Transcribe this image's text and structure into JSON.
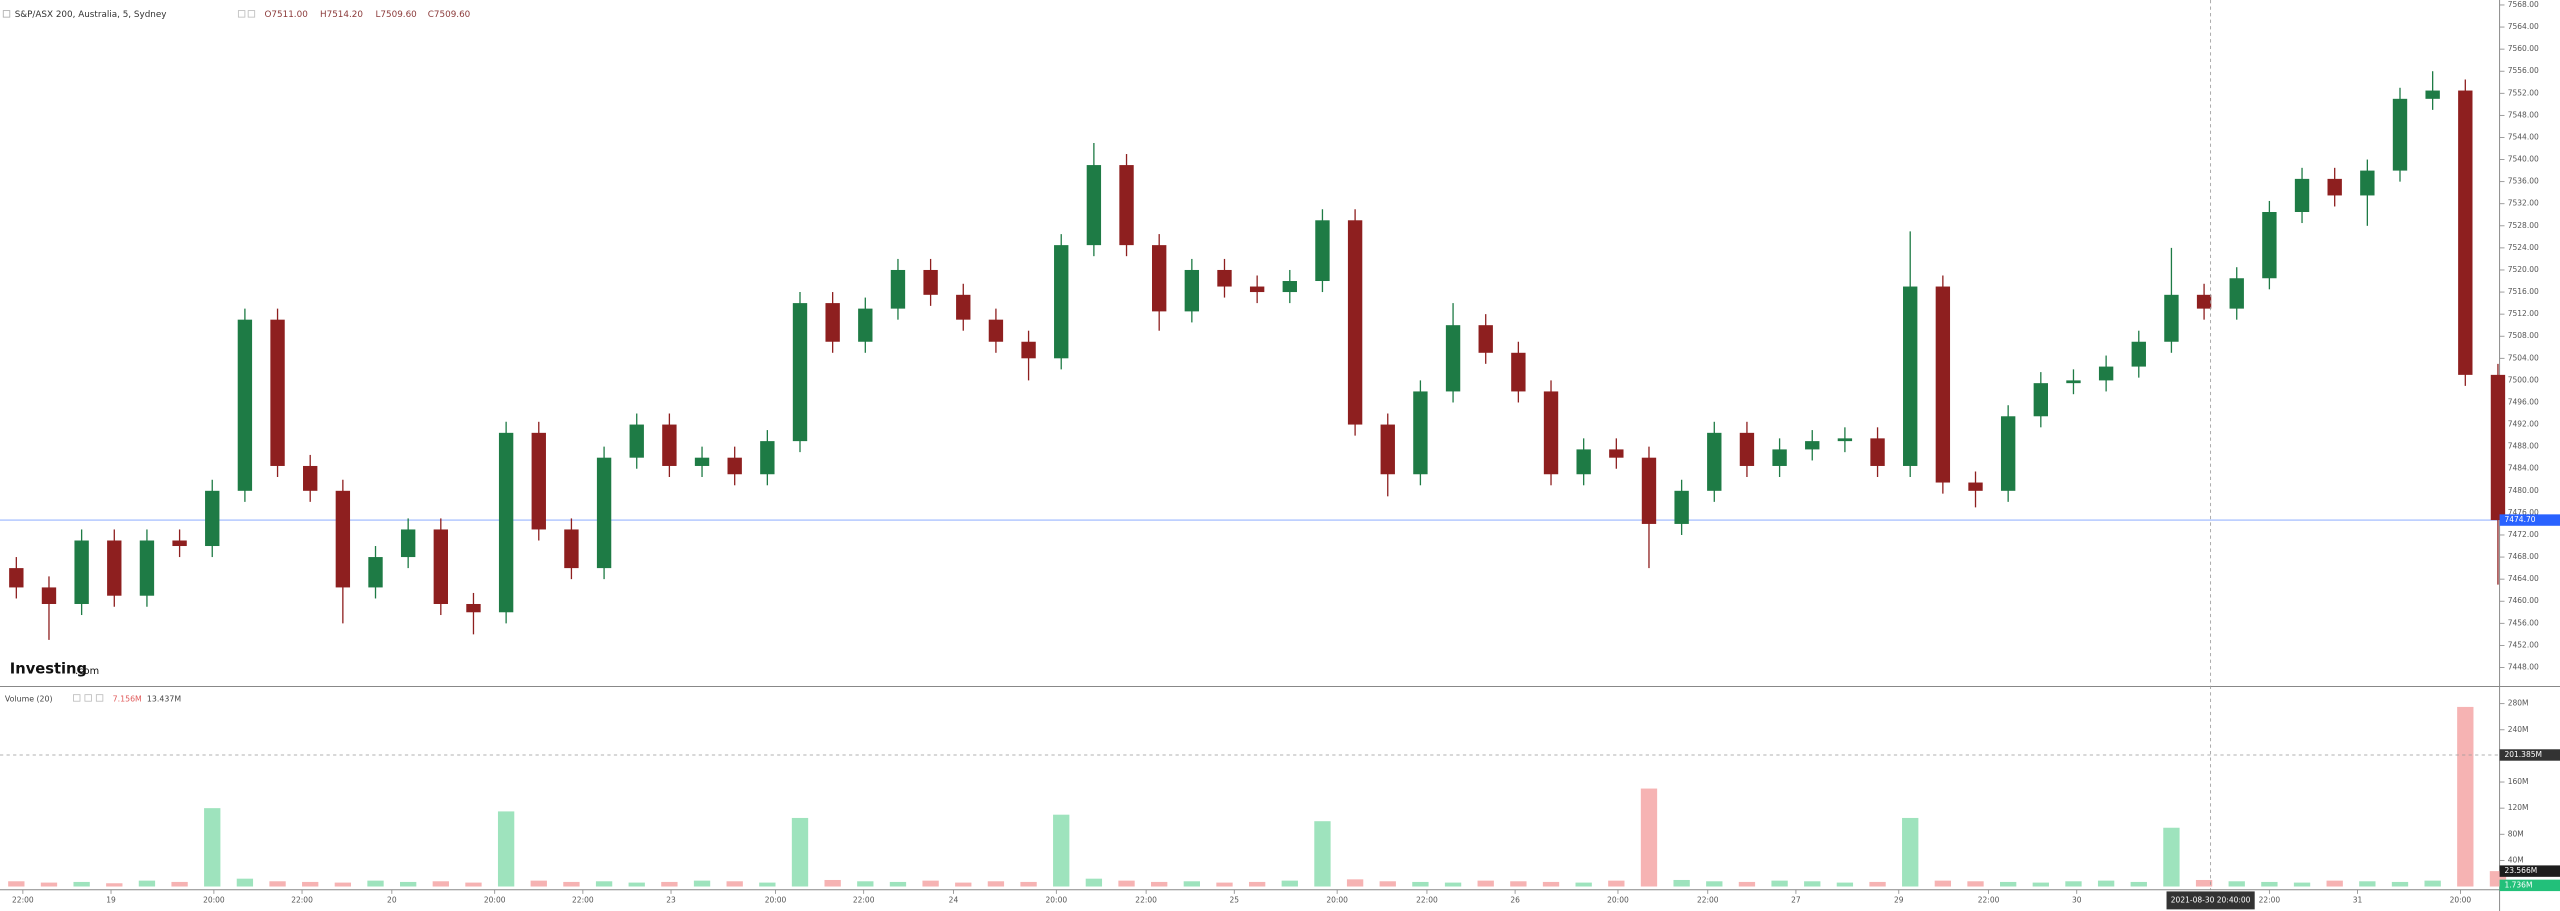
{
  "chart_data": {
    "type": "candlestick",
    "title": "S&P/ASX 200, Australia, 5, Sydney",
    "legend": {
      "open": "O7511.00",
      "high": "H7514.20",
      "low": "L7509.60",
      "close": "C7509.60"
    },
    "logo": {
      "main": "Investing",
      "suffix": ".com"
    },
    "up_color": "#1e7b45",
    "down_color": "#8e1f1f",
    "open": [
      7466,
      7462.5,
      7459.5,
      7471,
      7461,
      7471,
      7470,
      7480,
      7511,
      7484.5,
      7480,
      7462.5,
      7468,
      7473,
      7459.5,
      7458,
      7490.5,
      7473,
      7466,
      7486,
      7492,
      7484.5,
      7486,
      7483,
      7489,
      7514,
      7507,
      7513,
      7520,
      7515.5,
      7511,
      7507,
      7504,
      7524.5,
      7539,
      7524.5,
      7512.5,
      7520,
      7517,
      7516,
      7518,
      7529,
      7492,
      7483,
      7498,
      7510,
      7505,
      7498,
      7483,
      7487.5,
      7486,
      7474,
      7480,
      7490.5,
      7484.5,
      7487.5,
      7489,
      7489.5,
      7484.5,
      7517,
      7481.5,
      7480,
      7493.5,
      7499.5,
      7500,
      7502.5,
      7507,
      7515.5,
      7513,
      7518.5,
      7530.5,
      7536.5,
      7533.5,
      7538,
      7551,
      7552.5,
      7501
    ],
    "high": [
      7468,
      7464.5,
      7473,
      7473,
      7473,
      7473,
      7482,
      7513,
      7513,
      7486.5,
      7482,
      7470,
      7475,
      7475,
      7461.5,
      7492.5,
      7492.5,
      7475,
      7488,
      7494,
      7494,
      7488,
      7488,
      7491,
      7516,
      7516,
      7515,
      7522,
      7522,
      7517.5,
      7513,
      7509,
      7526.5,
      7543,
      7541,
      7526.5,
      7522,
      7522,
      7519,
      7520,
      7531,
      7531,
      7494,
      7500,
      7514,
      7512,
      7507,
      7500,
      7489.5,
      7489.5,
      7488,
      7482,
      7492.5,
      7492.5,
      7489.5,
      7491,
      7491.5,
      7491.5,
      7527,
      7519,
      7483.5,
      7495.5,
      7501.5,
      7502,
      7504.5,
      7509,
      7524,
      7517.5,
      7520.5,
      7532.5,
      7538.5,
      7538.5,
      7540,
      7553,
      7556,
      7554.5,
      7503
    ],
    "low": [
      7460.5,
      7453,
      7457.5,
      7459,
      7459,
      7468,
      7468,
      7478,
      7482.5,
      7478,
      7456,
      7460.5,
      7466,
      7457.5,
      7454,
      7456,
      7471,
      7464,
      7464,
      7484,
      7482.5,
      7482.5,
      7481,
      7481,
      7487,
      7505,
      7505,
      7511,
      7513.5,
      7509,
      7505,
      7500,
      7502,
      7522.5,
      7522.5,
      7509,
      7510.5,
      7515,
      7514,
      7514,
      7516,
      7490,
      7479,
      7481,
      7496,
      7503,
      7496,
      7481,
      7481,
      7484,
      7466,
      7472,
      7478,
      7482.5,
      7482.5,
      7485.5,
      7487,
      7482.5,
      7482.5,
      7479.5,
      7477,
      7478,
      7491.5,
      7497.5,
      7498,
      7500.5,
      7505,
      7511,
      7511,
      7516.5,
      7528.5,
      7531.5,
      7528,
      7536,
      7549,
      7499,
      7463
    ],
    "close": [
      7462.5,
      7459.5,
      7471,
      7461,
      7471,
      7470,
      7480,
      7511,
      7484.5,
      7480,
      7462.5,
      7468,
      7473,
      7459.5,
      7458,
      7490.5,
      7473,
      7466,
      7486,
      7492,
      7484.5,
      7486,
      7483,
      7489,
      7514,
      7507,
      7513,
      7520,
      7515.5,
      7511,
      7507,
      7504,
      7524.5,
      7539,
      7524.5,
      7512.5,
      7520,
      7517,
      7516,
      7518,
      7529,
      7492,
      7483,
      7498,
      7510,
      7505,
      7498,
      7483,
      7487.5,
      7486,
      7474,
      7480,
      7490.5,
      7484.5,
      7487.5,
      7489,
      7489.5,
      7484.5,
      7517,
      7481.5,
      7480,
      7493.5,
      7499.5,
      7500,
      7502.5,
      7507,
      7515.5,
      7513,
      7518.5,
      7530.5,
      7536.5,
      7533.5,
      7538,
      7551,
      7552.5,
      7501,
      7474.7
    ],
    "xlim": [
      -0.5,
      76
    ],
    "xticks": [
      {
        "value": 0.2,
        "label": "22:00"
      },
      {
        "value": 2.9,
        "label": "19"
      },
      {
        "value": 6.05,
        "label": "20:00"
      },
      {
        "value": 8.75,
        "label": "22:00"
      },
      {
        "value": 11.5,
        "label": "20"
      },
      {
        "value": 14.65,
        "label": "20:00"
      },
      {
        "value": 17.35,
        "label": "22:00"
      },
      {
        "value": 20.05,
        "label": "23"
      },
      {
        "value": 23.25,
        "label": "20:00"
      },
      {
        "value": 25.95,
        "label": "22:00"
      },
      {
        "value": 28.7,
        "label": "24"
      },
      {
        "value": 31.85,
        "label": "20:00"
      },
      {
        "value": 34.6,
        "label": "22:00"
      },
      {
        "value": 37.3,
        "label": "25"
      },
      {
        "value": 40.45,
        "label": "20:00"
      },
      {
        "value": 43.2,
        "label": "22:00"
      },
      {
        "value": 45.9,
        "label": "26"
      },
      {
        "value": 49.05,
        "label": "20:00"
      },
      {
        "value": 51.8,
        "label": "22:00"
      },
      {
        "value": 54.5,
        "label": "27"
      },
      {
        "value": 57.65,
        "label": "29"
      },
      {
        "value": 60.4,
        "label": "22:00"
      },
      {
        "value": 63.1,
        "label": "30"
      },
      {
        "value": 69,
        "label": "22:00"
      },
      {
        "value": 71.7,
        "label": "31"
      },
      {
        "value": 74.85,
        "label": "20:00"
      }
    ],
    "ylim": [
      7444.7,
      7568.9
    ],
    "yticks": [
      {
        "value": 7448,
        "label": "7448.00"
      },
      {
        "value": 7452,
        "label": "7452.00"
      },
      {
        "value": 7456,
        "label": "7456.00"
      },
      {
        "value": 7460,
        "label": "7460.00"
      },
      {
        "value": 7464,
        "label": "7464.00"
      },
      {
        "value": 7468,
        "label": "7468.00"
      },
      {
        "value": 7472,
        "label": "7472.00"
      },
      {
        "value": 7476,
        "label": "7476.00"
      },
      {
        "value": 7480,
        "label": "7480.00"
      },
      {
        "value": 7484,
        "label": "7484.00"
      },
      {
        "value": 7488,
        "label": "7488.00"
      },
      {
        "value": 7492,
        "label": "7492.00"
      },
      {
        "value": 7496,
        "label": "7496.00"
      },
      {
        "value": 7500,
        "label": "7500.00"
      },
      {
        "value": 7504,
        "label": "7504.00"
      },
      {
        "value": 7508,
        "label": "7508.00"
      },
      {
        "value": 7512,
        "label": "7512.00"
      },
      {
        "value": 7516,
        "label": "7516.00"
      },
      {
        "value": 7520,
        "label": "7520.00"
      },
      {
        "value": 7524,
        "label": "7524.00"
      },
      {
        "value": 7528,
        "label": "7528.00"
      },
      {
        "value": 7532,
        "label": "7532.00"
      },
      {
        "value": 7536,
        "label": "7536.00"
      },
      {
        "value": 7540,
        "label": "7540.00"
      },
      {
        "value": 7544,
        "label": "7544.00"
      },
      {
        "value": 7548,
        "label": "7548.00"
      },
      {
        "value": 7552,
        "label": "7552.00"
      },
      {
        "value": 7556,
        "label": "7556.00"
      },
      {
        "value": 7560,
        "label": "7560.00"
      },
      {
        "value": 7564,
        "label": "7564.00"
      },
      {
        "value": 7568,
        "label": "7568.00"
      }
    ],
    "last_price": {
      "value": 7474.7,
      "label": "7474.70",
      "color": "#2962ff"
    },
    "crosshair": {
      "x": 67.2,
      "x_label": "2021-08-30 20:40:00",
      "volume": {
        "value": 201.385,
        "label": "201.385M"
      }
    },
    "volume": {
      "title": "Volume (20)",
      "legend_values": [
        "7.156M",
        "13.437M"
      ],
      "up_color": "#9ee3bd",
      "down_color": "#f6b3b3",
      "values": [
        8,
        6,
        7,
        5,
        9,
        7,
        120,
        12,
        8,
        7,
        6,
        9,
        7,
        8,
        6,
        115,
        9,
        7,
        8,
        6,
        7,
        9,
        8,
        6,
        105,
        10,
        8,
        7,
        9,
        6,
        8,
        7,
        110,
        12,
        9,
        7,
        8,
        6,
        7,
        9,
        100,
        11,
        8,
        7,
        6,
        9,
        8,
        7,
        6,
        9,
        150,
        10,
        8,
        7,
        9,
        8,
        6,
        7,
        105,
        9,
        8,
        7,
        6,
        8,
        9,
        7,
        90,
        10,
        8,
        7,
        6,
        9,
        8,
        7,
        9,
        275,
        23.566
      ],
      "ylim": [
        0,
        305
      ],
      "yticks": [
        {
          "value": 40,
          "label": "40M"
        },
        {
          "value": 80,
          "label": "80M"
        },
        {
          "value": 120,
          "label": "120M"
        },
        {
          "value": 160,
          "label": "160M"
        },
        {
          "value": 200,
          "label": "200M"
        },
        {
          "value": 240,
          "label": "240M"
        },
        {
          "value": 280,
          "label": "280M"
        }
      ],
      "last_labels": [
        {
          "value": 23.566,
          "label": "23.566M"
        },
        {
          "value": 1.736,
          "label": "1.736M"
        }
      ]
    }
  }
}
